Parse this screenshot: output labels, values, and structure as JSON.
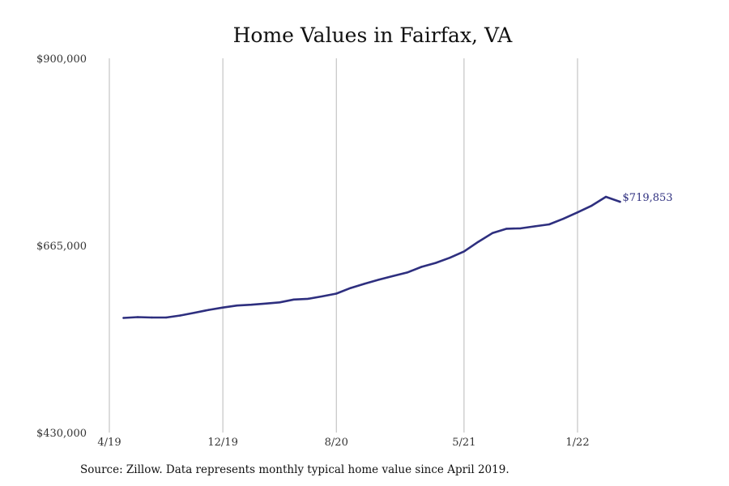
{
  "chart_data": {
    "type": "line",
    "title": "Home Values in Fairfax, VA",
    "xlabel": "",
    "ylabel": "",
    "x_start": "2019-04",
    "x_end": "2022-04",
    "x_ticks": [
      {
        "label": "4/19",
        "date": "2019-04"
      },
      {
        "label": "12/19",
        "date": "2019-12"
      },
      {
        "label": "8/20",
        "date": "2020-08"
      },
      {
        "label": "5/21",
        "date": "2021-05"
      },
      {
        "label": "1/22",
        "date": "2022-01"
      }
    ],
    "y_ticks": [
      {
        "label": "$900,000",
        "value": 900000
      },
      {
        "label": "$665,000",
        "value": 665000
      },
      {
        "label": "$430,000",
        "value": 430000
      }
    ],
    "ylim": [
      430000,
      900000
    ],
    "grid": "vertical lines at x ticks",
    "end_label": "$719,853",
    "series": [
      {
        "color": "#2e2f7f",
        "dates": [
          "2019-05",
          "2019-06",
          "2019-07",
          "2019-08",
          "2019-09",
          "2019-10",
          "2019-11",
          "2019-12",
          "2020-01",
          "2020-02",
          "2020-03",
          "2020-04",
          "2020-05",
          "2020-06",
          "2020-07",
          "2020-08",
          "2020-09",
          "2020-10",
          "2020-11",
          "2020-12",
          "2021-01",
          "2021-02",
          "2021-03",
          "2021-04",
          "2021-05",
          "2021-06",
          "2021-07",
          "2021-08",
          "2021-09",
          "2021-10",
          "2021-11",
          "2021-12",
          "2022-01",
          "2022-02",
          "2022-03",
          "2022-04"
        ],
        "values": [
          574000,
          575000,
          574500,
          574500,
          577000,
          580500,
          584000,
          587000,
          589500,
          590500,
          592000,
          593500,
          597000,
          598000,
          601000,
          604500,
          611500,
          617000,
          622000,
          626500,
          631000,
          638000,
          643000,
          649500,
          657500,
          669500,
          680500,
          686000,
          686500,
          689000,
          691500,
          698500,
          706500,
          715000,
          726000,
          719853
        ]
      }
    ]
  },
  "footer": {
    "source": "Source: Zillow. Data represents monthly typical home value since April 2019."
  }
}
